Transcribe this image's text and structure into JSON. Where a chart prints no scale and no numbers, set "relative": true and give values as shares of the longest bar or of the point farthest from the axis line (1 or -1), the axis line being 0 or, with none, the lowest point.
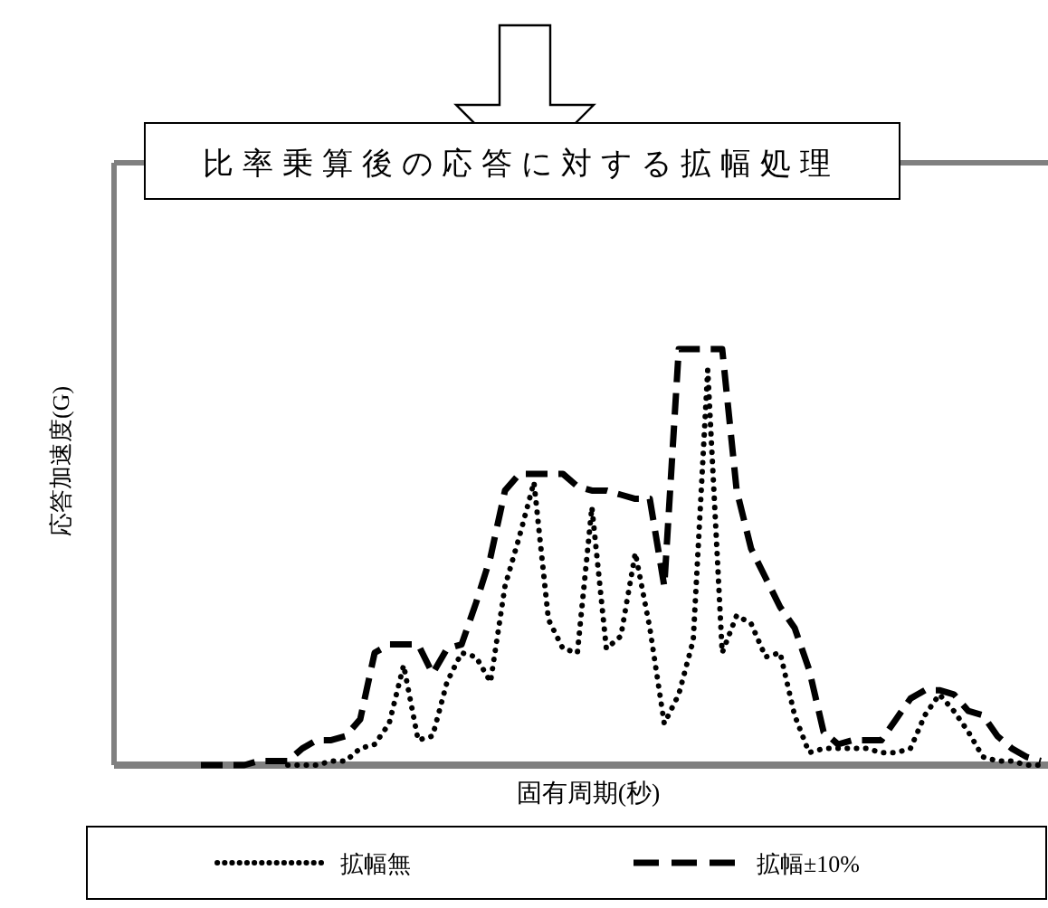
{
  "chart_data": {
    "type": "line",
    "title": "比率乗算後の応答に対する拡幅処理",
    "xlabel": "固有周期(秒)",
    "ylabel": "応答加速度(G)",
    "relative": true,
    "legend": "bottom",
    "categories": [
      null,
      null,
      null,
      null,
      null,
      null,
      null,
      null,
      null,
      null,
      null,
      null,
      null,
      null,
      null,
      null,
      null,
      null,
      null,
      null,
      null,
      null,
      null,
      null,
      null,
      null,
      null,
      null,
      null,
      null,
      null,
      null,
      null,
      null,
      null,
      null,
      null,
      null,
      null,
      null,
      null,
      null,
      null,
      null,
      null,
      null,
      null,
      null,
      null,
      null,
      null,
      null,
      null,
      null,
      null,
      null,
      null,
      null,
      null,
      null,
      null,
      null,
      null,
      null,
      null
    ],
    "series": [
      {
        "name": "拡幅無",
        "color": "#000000",
        "line_style": "dotted",
        "values": [
          null,
          null,
          null,
          null,
          null,
          null,
          null,
          null,
          null,
          null,
          null,
          null,
          0,
          0,
          0,
          0.01,
          0.01,
          0.04,
          0.05,
          0.1,
          0.24,
          0.06,
          0.07,
          0.2,
          0.27,
          0.26,
          0.2,
          0.43,
          0.55,
          0.68,
          0.35,
          0.28,
          0.27,
          0.62,
          0.28,
          0.31,
          0.51,
          0.33,
          0.1,
          0.17,
          0.3,
          0.95,
          0.27,
          0.36,
          0.34,
          0.26,
          0.27,
          0.12,
          0.03,
          0.04,
          0.04,
          0.04,
          0.04,
          0.03,
          0.03,
          0.04,
          0.12,
          0.17,
          0.13,
          0.08,
          0.02,
          0.01,
          0.01,
          0,
          0
        ]
      },
      {
        "name": "拡幅±10%",
        "color": "#000000",
        "line_style": "dashed",
        "values": [
          null,
          null,
          null,
          null,
          null,
          null,
          0,
          0,
          0,
          0,
          0.01,
          0.01,
          0.01,
          0.04,
          0.06,
          0.06,
          0.07,
          0.11,
          0.27,
          0.29,
          0.29,
          0.29,
          0.22,
          0.28,
          0.29,
          0.39,
          0.5,
          0.66,
          0.7,
          0.7,
          0.7,
          0.7,
          0.67,
          0.66,
          0.66,
          0.65,
          0.64,
          0.64,
          0.43,
          1,
          1,
          1,
          1,
          0.66,
          0.52,
          0.45,
          0.38,
          0.33,
          0.23,
          0.08,
          0.05,
          0.06,
          0.06,
          0.06,
          0.11,
          0.16,
          0.18,
          0.18,
          0.17,
          0.13,
          0.12,
          0.07,
          0.04,
          0.02,
          0.01
        ]
      }
    ]
  }
}
